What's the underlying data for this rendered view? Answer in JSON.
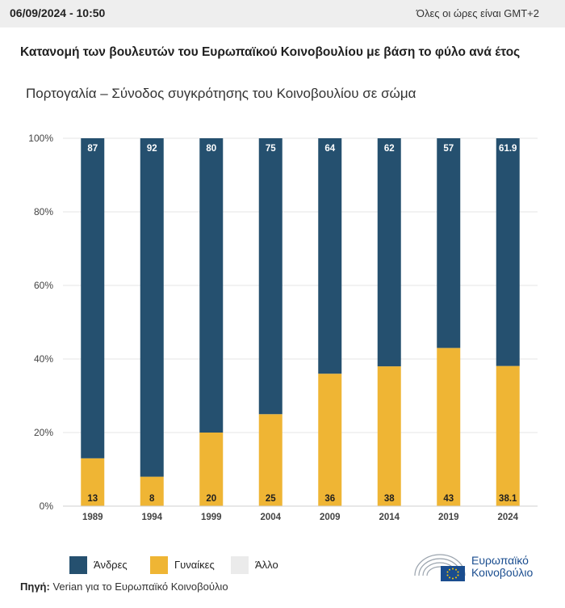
{
  "header": {
    "date": "06/09/2024 - 10:50",
    "timezone_note": "Όλες οι ώρες είναι GMT+2"
  },
  "colors": {
    "men": "#25506f",
    "women": "#efb534",
    "other": "#ebebeb",
    "grid": "#e6e6e6",
    "logo_blue": "#1a4d8f"
  },
  "chart_data": {
    "type": "bar",
    "stacked": true,
    "title": "Κατανομή των βουλευτών του Ευρωπαϊκού Κοινοβουλίου με βάση το φύλο ανά έτος",
    "subtitle": "Πορτογαλία – Σύνοδος συγκρότησης του Κοινοβουλίου σε σώμα",
    "categories": [
      "1989",
      "1994",
      "1999",
      "2004",
      "2009",
      "2014",
      "2019",
      "2024"
    ],
    "series": [
      {
        "name": "Άνδρες",
        "values": [
          87,
          92,
          80,
          75,
          64,
          62,
          57,
          61.9
        ]
      },
      {
        "name": "Γυναίκες",
        "values": [
          13,
          8,
          20,
          25,
          36,
          38,
          43,
          38.1
        ]
      },
      {
        "name": "Άλλο",
        "values": [
          0,
          0,
          0,
          0,
          0,
          0,
          0,
          0
        ]
      }
    ],
    "ylim": [
      0,
      100
    ],
    "yticks": [
      "0%",
      "20%",
      "40%",
      "60%",
      "80%",
      "100%"
    ],
    "grid": true,
    "legend_position": "bottom-left"
  },
  "source": {
    "label": "Πηγή:",
    "text": " Verian για το Ευρωπαϊκό Κοινοβούλιο"
  },
  "logo": {
    "line1": "Ευρωπαϊκό",
    "line2": "Κοινοβούλιο",
    "icon": "european-parliament-logo-icon"
  }
}
